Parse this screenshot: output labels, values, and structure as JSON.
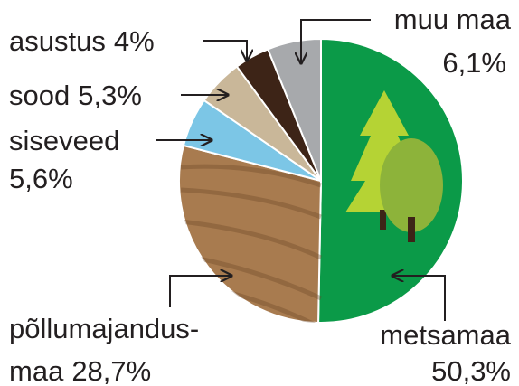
{
  "chart_data": {
    "type": "pie",
    "categories": [
      "metsamaa",
      "põllumajandus-maa",
      "siseveed",
      "sood",
      "asustus",
      "muu maa"
    ],
    "values": [
      50.3,
      28.7,
      5.6,
      5.3,
      4,
      6.1
    ],
    "value_labels": [
      "50,3%",
      "28,7%",
      "5,6%",
      "5,3%",
      "4%",
      "6,1%"
    ],
    "colors": [
      "#0b9a48",
      "#a87b4f",
      "#7cc6e6",
      "#c9b799",
      "#3d2417",
      "#a7a9ac"
    ]
  }
}
